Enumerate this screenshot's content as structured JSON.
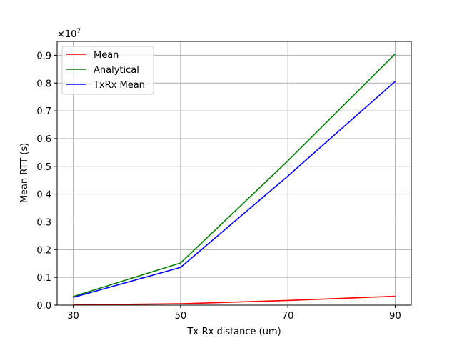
{
  "chart_data": {
    "type": "line",
    "x": [
      30,
      50,
      70,
      90
    ],
    "xticks": [
      "30",
      "50",
      "70",
      "90"
    ],
    "xlim": [
      27,
      93
    ],
    "ylim": [
      0,
      0.95
    ],
    "yticks": [
      "0.0",
      "0.1",
      "0.2",
      "0.3",
      "0.4",
      "0.5",
      "0.6",
      "0.7",
      "0.8",
      "0.9"
    ],
    "offset_label_base": "×10",
    "offset_label_exp": "7",
    "xlabel": "Tx-Rx distance (um)",
    "ylabel": "Mean RTT (s)",
    "grid": true,
    "legend_position": "top-left",
    "series": [
      {
        "name": "Mean",
        "color": "#ff0000",
        "values": [
          0.001,
          0.005,
          0.017,
          0.032
        ]
      },
      {
        "name": "Analytical",
        "color": "#008000",
        "values": [
          0.031,
          0.152,
          0.52,
          0.905
        ]
      },
      {
        "name": "TxRx Mean",
        "color": "#0000ff",
        "values": [
          0.028,
          0.136,
          0.465,
          0.806
        ]
      }
    ]
  }
}
